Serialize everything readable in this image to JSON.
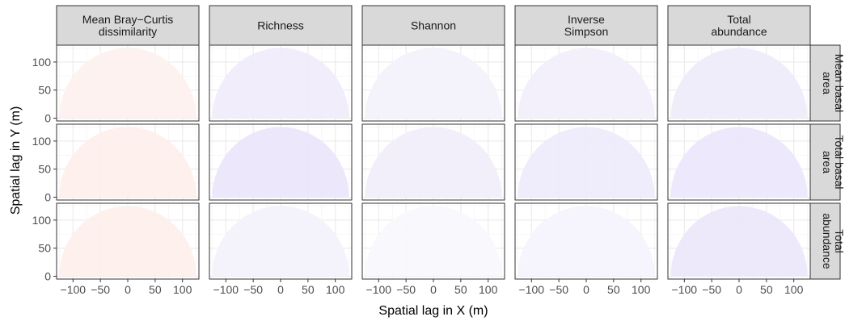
{
  "chart_data": {
    "type": "heatmap",
    "title": "",
    "xlabel": "Spatial lag in X (m)",
    "ylabel": "Spatial lag in Y (m)",
    "xlim": [
      -130,
      130
    ],
    "ylim": [
      -5,
      130
    ],
    "x_ticks": [
      -100,
      -50,
      0,
      50,
      100
    ],
    "x_tick_labels": [
      "−100",
      "−50",
      "0",
      "50",
      "100"
    ],
    "y_ticks": [
      0,
      50,
      100
    ],
    "y_tick_labels": [
      "0",
      "50",
      "100"
    ],
    "grid": true,
    "domain_shape": "semicircle",
    "max_lag": 125,
    "columns": [
      [
        "Mean Bray−Curtis",
        "dissimilarity"
      ],
      [
        "Richness"
      ],
      [
        "Shannon"
      ],
      [
        "Inverse",
        "Simpson"
      ],
      [
        "Total",
        "abundance"
      ]
    ],
    "rows": [
      [
        "Mean basal",
        "area"
      ],
      [
        "Total basal",
        "area"
      ],
      [
        "Total",
        "abundance"
      ]
    ],
    "panel_fill": [
      [
        "#fdf1ef",
        "#f0ecfb",
        "#f3f1fb",
        "#f2effb",
        "#efebfb"
      ],
      [
        "#fdefec",
        "#ebe5fb",
        "#f1eefb",
        "#eeeafb",
        "#ebe6fb"
      ],
      [
        "#fdefec",
        "#f3f1fb",
        "#f8f7fd",
        "#f5f3fc",
        "#ece7fb"
      ]
    ]
  }
}
